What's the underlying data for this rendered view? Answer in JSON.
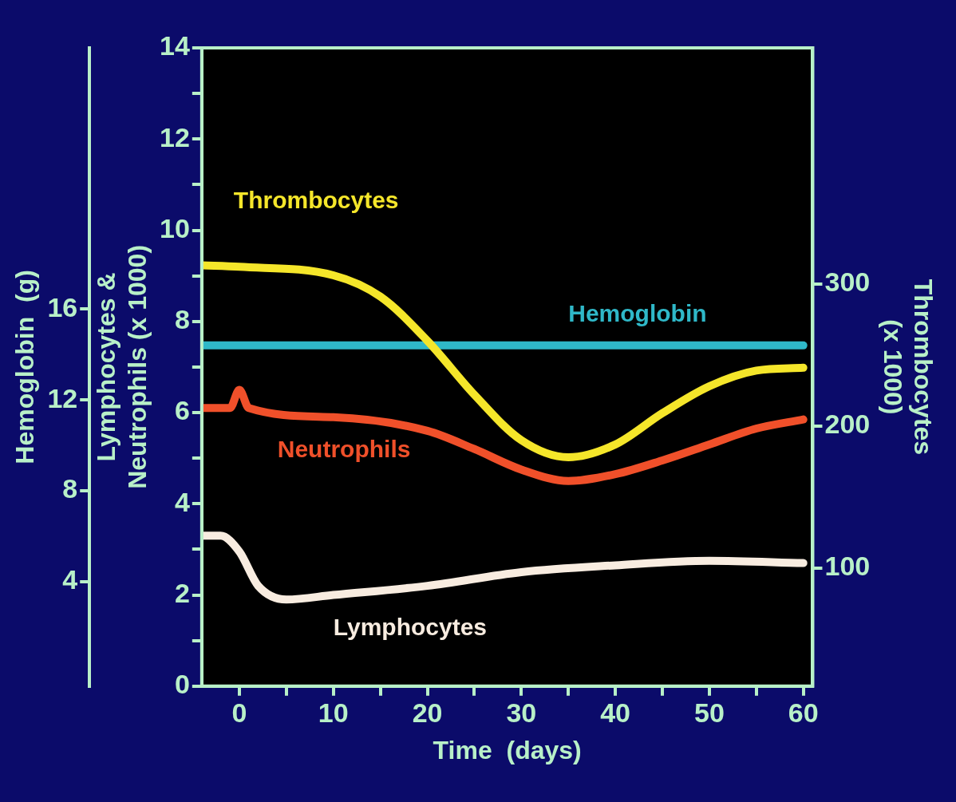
{
  "chart_data": {
    "type": "line",
    "xlabel": "Time  (days)",
    "ylabel": "Lymphocytes &\nNeutrophils (x 1000)",
    "y2label": "Thrombocytes\n(x 1000)",
    "y3label": "Hemoglobin  (g)",
    "xlim": [
      -4,
      61
    ],
    "xticks": [
      0,
      {
        "value": 5,
        "label": null
      },
      10,
      {
        "value": 15,
        "label": null
      },
      20,
      {
        "value": 25,
        "label": null
      },
      30,
      {
        "value": 35,
        "label": null
      },
      40,
      {
        "value": 45,
        "label": null
      },
      50,
      {
        "value": 55,
        "label": null
      },
      60
    ],
    "ylim": [
      0,
      14
    ],
    "yticks": [
      0,
      {
        "value": 1,
        "label": null
      },
      2,
      {
        "value": 3,
        "label": null
      },
      4,
      {
        "value": 5,
        "label": null
      },
      6,
      {
        "value": 7,
        "label": null
      },
      8,
      {
        "value": 9,
        "label": null
      },
      10,
      {
        "value": 11,
        "label": null
      },
      12,
      {
        "value": 13,
        "label": null
      },
      14
    ],
    "y2lim": [
      17,
      466
    ],
    "y2ticks": [
      100,
      200,
      300
    ],
    "y3lim": [
      -0.6,
      27.5
    ],
    "y3ticks": [
      4,
      8,
      12,
      16
    ],
    "grid": false,
    "legend": false,
    "marker": "none",
    "line_style": "solid",
    "series": [
      {
        "name": "Thrombocytes",
        "color": "#f5e62a",
        "axis": "y2",
        "x": [
          -4,
          0,
          10,
          15,
          20,
          25,
          30,
          35,
          40,
          45,
          50,
          55,
          60
        ],
        "values": [
          313,
          312,
          306,
          291,
          260,
          222,
          190,
          178,
          187,
          209,
          228,
          239,
          241
        ]
      },
      {
        "name": "Hemoglobin",
        "color": "#2fb8c8",
        "axis": "y3",
        "x": [
          -4,
          60
        ],
        "values": [
          14.4,
          14.4
        ]
      },
      {
        "name": "Neutrophils",
        "color": "#f0502a",
        "axis": "y",
        "x": [
          -4,
          -1,
          0,
          1,
          10,
          20,
          25,
          30,
          35,
          40,
          45,
          50,
          55,
          60
        ],
        "values": [
          6.1,
          6.1,
          6.5,
          6.1,
          5.9,
          5.6,
          5.2,
          4.75,
          4.5,
          4.65,
          4.95,
          5.3,
          5.65,
          5.85
        ]
      },
      {
        "name": "Lymphocytes",
        "color": "#f8ece0",
        "axis": "y",
        "x": [
          -4,
          -2,
          0,
          2,
          5,
          10,
          20,
          30,
          40,
          50,
          60
        ],
        "values": [
          3.3,
          3.3,
          2.95,
          2.2,
          1.9,
          2.0,
          2.2,
          2.5,
          2.65,
          2.75,
          2.7
        ]
      }
    ]
  }
}
